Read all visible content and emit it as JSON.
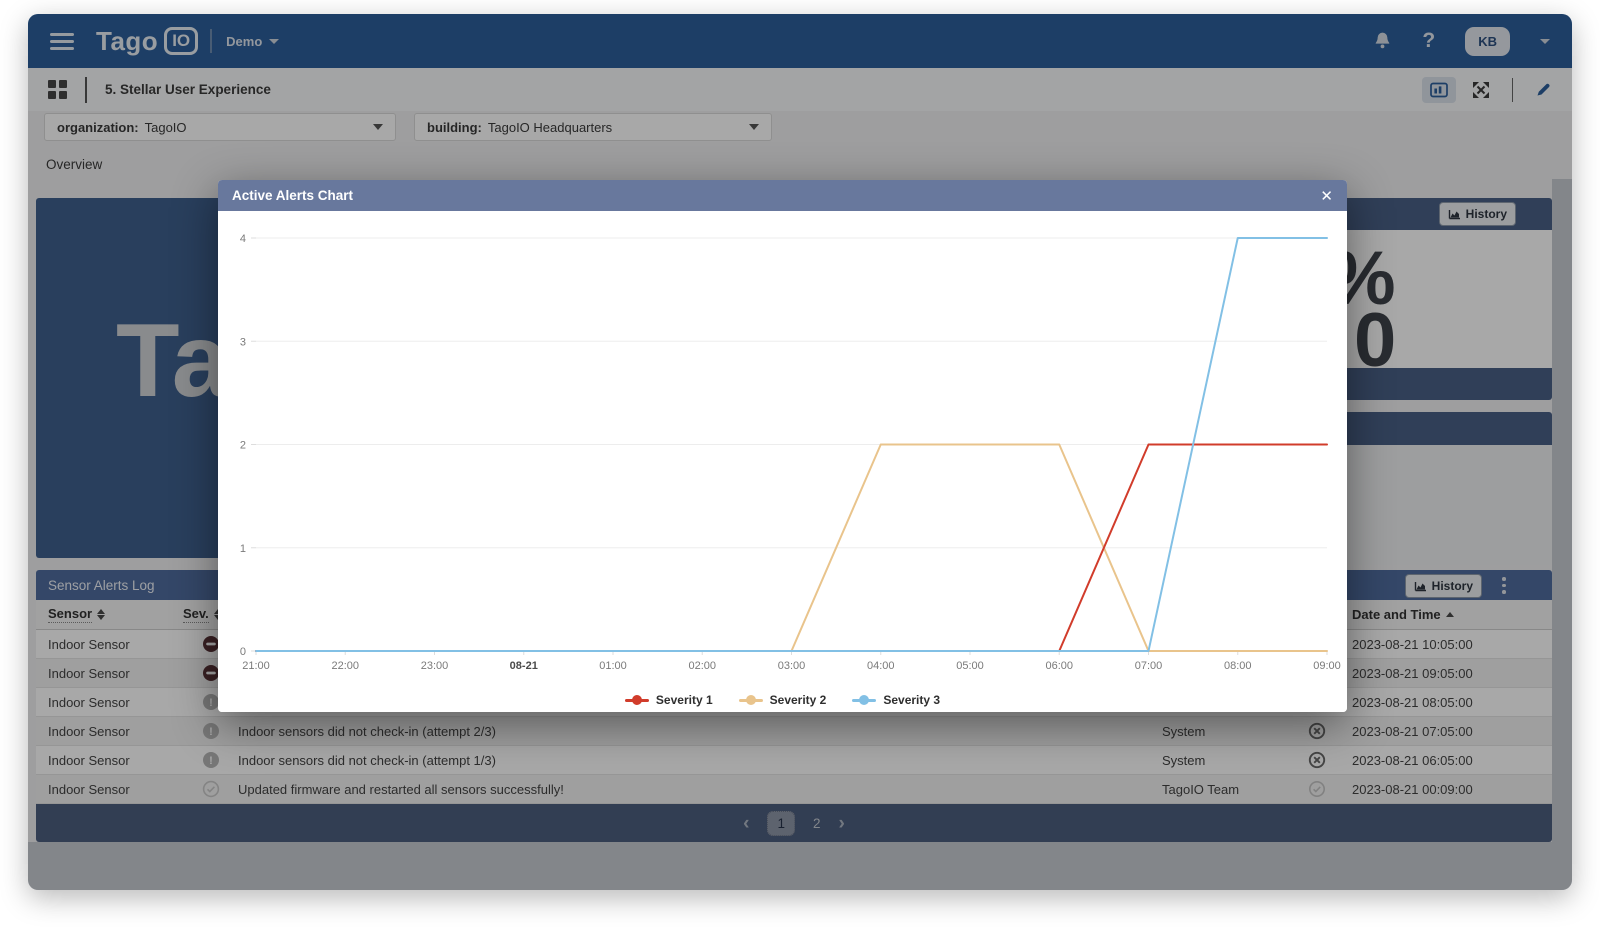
{
  "navbar": {
    "brand_text": "Tago",
    "brand_badge": "IO",
    "workspace": "Demo",
    "help_label": "?",
    "avatar_initials": "KB"
  },
  "toolbar": {
    "dashboard_title": "5. Stellar User Experience"
  },
  "filters": {
    "organization": {
      "label": "organization:",
      "value": "TagoIO"
    },
    "building": {
      "label": "building:",
      "value": "TagoIO Headquarters"
    }
  },
  "tabs": {
    "overview_label": "Overview"
  },
  "background": {
    "left_card_watermark": "Ta",
    "top_right_card": {
      "history_label": "History",
      "metric_top": "%",
      "metric_bottom": "0"
    },
    "log_header": {
      "title": "Sensor Alerts Log",
      "history_label": "History"
    }
  },
  "alerts_table": {
    "columns": {
      "sensor": "Sensor",
      "severity": "Sev.",
      "datetime": "Date and Time"
    },
    "rows": [
      {
        "sensor": "Indoor Sensor",
        "severity": "ban",
        "message": "",
        "sent_by": "",
        "status": "",
        "datetime": "2023-08-21 10:05:00"
      },
      {
        "sensor": "Indoor Sensor",
        "severity": "ban",
        "message": "",
        "sent_by": "",
        "status": "",
        "datetime": "2023-08-21 09:05:00"
      },
      {
        "sensor": "Indoor Sensor",
        "severity": "warning",
        "message": "",
        "sent_by": "",
        "status": "",
        "datetime": "2023-08-21 08:05:00"
      },
      {
        "sensor": "Indoor Sensor",
        "severity": "warning",
        "message": "Indoor sensors did not check-in (attempt 2/3)",
        "sent_by": "System",
        "status": "failed",
        "datetime": "2023-08-21 07:05:00"
      },
      {
        "sensor": "Indoor Sensor",
        "severity": "warning",
        "message": "Indoor sensors did not check-in (attempt 1/3)",
        "sent_by": "System",
        "status": "failed",
        "datetime": "2023-08-21 06:05:00"
      },
      {
        "sensor": "Indoor Sensor",
        "severity": "ok",
        "message": "Updated firmware and restarted all sensors successfully!",
        "sent_by": "TagoIO Team",
        "status": "success",
        "datetime": "2023-08-21 00:09:00"
      }
    ],
    "pagination": {
      "prev": "‹",
      "next": "›",
      "pages": [
        "1",
        "2"
      ],
      "active_page": "1"
    }
  },
  "modal": {
    "title": "Active Alerts Chart",
    "close_glyph": "✕"
  },
  "chart_data": {
    "type": "line",
    "title": "Active Alerts Chart",
    "x_tick_labels": [
      "21:00",
      "22:00",
      "23:00",
      "08-21",
      "01:00",
      "02:00",
      "03:00",
      "04:00",
      "05:00",
      "06:00",
      "07:00",
      "08:00",
      "09:00"
    ],
    "x_bold_tick": "08-21",
    "x_unit": "hours from 21:00",
    "y_ticks": [
      0,
      1,
      2,
      3,
      4
    ],
    "ylim": [
      0,
      4
    ],
    "grid": true,
    "legend_position": "bottom",
    "series": [
      {
        "name": "Severity 1",
        "color": "#d13c2b",
        "points": [
          [
            0,
            0
          ],
          [
            9,
            0
          ],
          [
            10,
            2
          ],
          [
            12,
            2
          ]
        ]
      },
      {
        "name": "Severity 2",
        "color": "#e9c48c",
        "points": [
          [
            0,
            0
          ],
          [
            6,
            0
          ],
          [
            7,
            2
          ],
          [
            9,
            2
          ],
          [
            10,
            0
          ],
          [
            12,
            0
          ]
        ]
      },
      {
        "name": "Severity 3",
        "color": "#82c0e5",
        "points": [
          [
            0,
            0
          ],
          [
            10,
            0
          ],
          [
            11,
            4
          ],
          [
            12,
            4
          ]
        ]
      }
    ],
    "draw_order": [
      "Severity 2",
      "Severity 1",
      "Severity 3"
    ]
  }
}
